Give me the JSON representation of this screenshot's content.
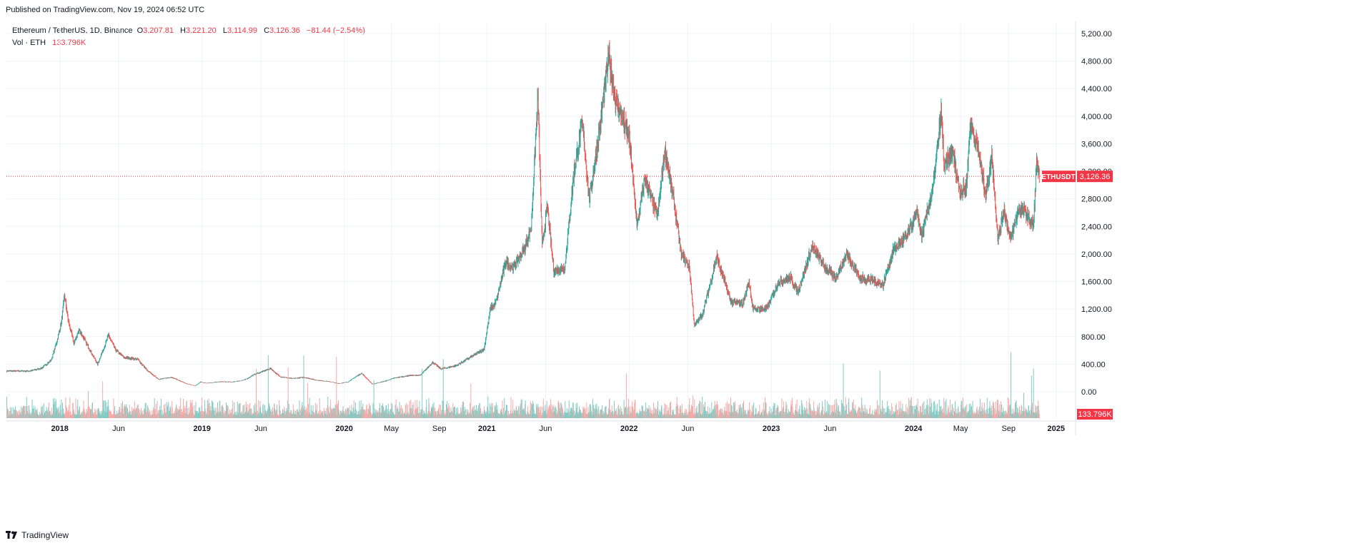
{
  "header": {
    "published": "Published on TradingView.com, Nov 19, 2024 06:52 UTC"
  },
  "legend": {
    "symbol": "Ethereum / TetherUS, 1D, Binance",
    "o_label": "O",
    "o_value": "3,207.81",
    "h_label": "H",
    "h_value": "3,221.20",
    "l_label": "L",
    "l_value": "3,114.99",
    "c_label": "C",
    "c_value": "3,126.36",
    "change": "−81.44 (−2.54%)",
    "vol_label": "Vol · ETH",
    "vol_value": "133.796K"
  },
  "price_label": {
    "ticker": "ETHUSDT",
    "value": "3,126.36"
  },
  "volume_label": {
    "value": "133.796K"
  },
  "footer": {
    "brand": "TradingView"
  },
  "colors": {
    "up": "#26a69a",
    "down": "#ef5350",
    "vol_up": "#80cbc4",
    "vol_down": "#f7a9a7",
    "grid": "#f0f3fa",
    "last": "#f23645"
  },
  "chart_data": {
    "type": "candlestick",
    "title": "Ethereum / TetherUS, 1D, Binance",
    "y_ticks": [
      "5,200.00",
      "4,800.00",
      "4,400.00",
      "4,000.00",
      "3,600.00",
      "3,200.00",
      "2,800.00",
      "2,400.00",
      "2,000.00",
      "1,600.00",
      "1,200.00",
      "800.00",
      "400.00",
      "0.00"
    ],
    "ylim": [
      0,
      5200
    ],
    "x_ticks": [
      "2018",
      "Jun",
      "2019",
      "Jun",
      "2020",
      "May",
      "Sep",
      "2021",
      "Jun",
      "2022",
      "Jun",
      "2023",
      "Jun",
      "2024",
      "May",
      "Sep",
      "2025"
    ],
    "x_tick_dates": [
      "2018-01-01",
      "2018-06-01",
      "2019-01-01",
      "2019-06-01",
      "2020-01-01",
      "2020-05-01",
      "2020-09-01",
      "2021-01-01",
      "2021-06-01",
      "2022-01-01",
      "2022-06-01",
      "2023-01-01",
      "2023-06-01",
      "2024-01-01",
      "2024-05-01",
      "2024-09-01",
      "2025-01-01"
    ],
    "xlim": [
      "2017-08-17",
      "2025-02-20"
    ],
    "last_price": 3126.36,
    "price_series": {
      "name": "ETHUSDT",
      "points": [
        [
          "2017-08-17",
          300
        ],
        [
          "2017-09-10",
          300
        ],
        [
          "2017-10-15",
          300
        ],
        [
          "2017-11-15",
          340
        ],
        [
          "2017-12-10",
          460
        ],
        [
          "2017-12-25",
          740
        ],
        [
          "2018-01-05",
          1000
        ],
        [
          "2018-01-13",
          1400
        ],
        [
          "2018-01-22",
          1050
        ],
        [
          "2018-02-06",
          700
        ],
        [
          "2018-02-20",
          900
        ],
        [
          "2018-03-15",
          650
        ],
        [
          "2018-04-08",
          400
        ],
        [
          "2018-04-25",
          650
        ],
        [
          "2018-05-06",
          820
        ],
        [
          "2018-05-25",
          600
        ],
        [
          "2018-06-15",
          500
        ],
        [
          "2018-07-20",
          470
        ],
        [
          "2018-08-15",
          300
        ],
        [
          "2018-09-12",
          180
        ],
        [
          "2018-10-15",
          210
        ],
        [
          "2018-11-20",
          120
        ],
        [
          "2018-12-14",
          85
        ],
        [
          "2018-12-28",
          140
        ],
        [
          "2019-01-10",
          125
        ],
        [
          "2019-02-20",
          145
        ],
        [
          "2019-03-20",
          140
        ],
        [
          "2019-04-20",
          170
        ],
        [
          "2019-05-15",
          250
        ],
        [
          "2019-06-26",
          335
        ],
        [
          "2019-07-20",
          220
        ],
        [
          "2019-08-20",
          190
        ],
        [
          "2019-09-20",
          210
        ],
        [
          "2019-10-20",
          170
        ],
        [
          "2019-11-20",
          150
        ],
        [
          "2019-12-18",
          120
        ],
        [
          "2020-01-10",
          140
        ],
        [
          "2020-02-14",
          270
        ],
        [
          "2020-03-13",
          110
        ],
        [
          "2020-04-15",
          155
        ],
        [
          "2020-05-10",
          200
        ],
        [
          "2020-06-15",
          235
        ],
        [
          "2020-07-15",
          240
        ],
        [
          "2020-08-15",
          430
        ],
        [
          "2020-09-05",
          330
        ],
        [
          "2020-10-15",
          380
        ],
        [
          "2020-11-20",
          500
        ],
        [
          "2020-12-25",
          620
        ],
        [
          "2021-01-10",
          1200
        ],
        [
          "2021-01-25",
          1300
        ],
        [
          "2021-02-19",
          1900
        ],
        [
          "2021-03-10",
          1800
        ],
        [
          "2021-04-10",
          2100
        ],
        [
          "2021-04-25",
          2400
        ],
        [
          "2021-05-12",
          4300
        ],
        [
          "2021-05-23",
          2100
        ],
        [
          "2021-06-05",
          2700
        ],
        [
          "2021-06-22",
          1750
        ],
        [
          "2021-07-20",
          1800
        ],
        [
          "2021-08-13",
          3200
        ],
        [
          "2021-09-03",
          3900
        ],
        [
          "2021-09-21",
          2800
        ],
        [
          "2021-10-10",
          3500
        ],
        [
          "2021-11-10",
          4850
        ],
        [
          "2021-11-25",
          4300
        ],
        [
          "2021-12-05",
          4100
        ],
        [
          "2022-01-01",
          3700
        ],
        [
          "2022-01-22",
          2400
        ],
        [
          "2022-02-10",
          3100
        ],
        [
          "2022-03-15",
          2550
        ],
        [
          "2022-04-03",
          3520
        ],
        [
          "2022-04-25",
          2800
        ],
        [
          "2022-05-15",
          2000
        ],
        [
          "2022-06-05",
          1800
        ],
        [
          "2022-06-18",
          950
        ],
        [
          "2022-07-10",
          1150
        ],
        [
          "2022-08-14",
          1950
        ],
        [
          "2022-09-20",
          1300
        ],
        [
          "2022-10-20",
          1280
        ],
        [
          "2022-11-05",
          1600
        ],
        [
          "2022-11-15",
          1200
        ],
        [
          "2022-12-20",
          1200
        ],
        [
          "2023-01-20",
          1600
        ],
        [
          "2023-02-20",
          1650
        ],
        [
          "2023-03-10",
          1450
        ],
        [
          "2023-04-16",
          2100
        ],
        [
          "2023-05-20",
          1800
        ],
        [
          "2023-06-15",
          1650
        ],
        [
          "2023-07-14",
          2000
        ],
        [
          "2023-08-17",
          1650
        ],
        [
          "2023-09-15",
          1620
        ],
        [
          "2023-10-15",
          1550
        ],
        [
          "2023-11-10",
          2050
        ],
        [
          "2023-12-15",
          2250
        ],
        [
          "2024-01-11",
          2600
        ],
        [
          "2024-01-22",
          2250
        ],
        [
          "2024-02-20",
          2950
        ],
        [
          "2024-03-12",
          4050
        ],
        [
          "2024-03-20",
          3250
        ],
        [
          "2024-04-10",
          3500
        ],
        [
          "2024-04-30",
          2900
        ],
        [
          "2024-05-15",
          2950
        ],
        [
          "2024-05-26",
          3900
        ],
        [
          "2024-06-15",
          3500
        ],
        [
          "2024-07-05",
          2850
        ],
        [
          "2024-07-20",
          3450
        ],
        [
          "2024-08-05",
          2200
        ],
        [
          "2024-08-20",
          2650
        ],
        [
          "2024-09-06",
          2200
        ],
        [
          "2024-09-27",
          2650
        ],
        [
          "2024-10-15",
          2600
        ],
        [
          "2024-11-04",
          2400
        ],
        [
          "2024-11-12",
          3350
        ],
        [
          "2024-11-19",
          3126.36
        ]
      ]
    },
    "volume_series": {
      "name": "Vol · ETH",
      "last_value": "133.796K"
    }
  }
}
